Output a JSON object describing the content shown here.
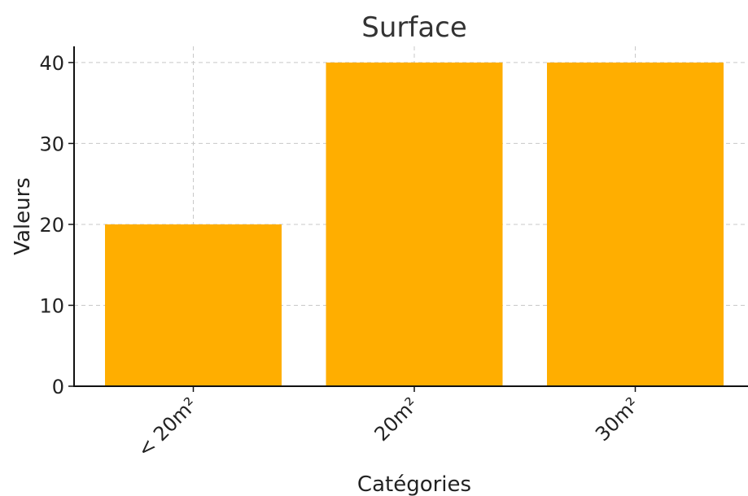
{
  "chart_data": {
    "type": "bar",
    "title": "Surface",
    "xlabel": "Catégories",
    "ylabel": "Valeurs",
    "categories": [
      "< 20m²",
      "20m²",
      "30m²"
    ],
    "values": [
      20,
      40,
      40
    ],
    "ylim": [
      0,
      42
    ],
    "yticks": [
      0,
      10,
      20,
      30,
      40
    ],
    "grid": true,
    "bar_color": "#FFAE00"
  }
}
